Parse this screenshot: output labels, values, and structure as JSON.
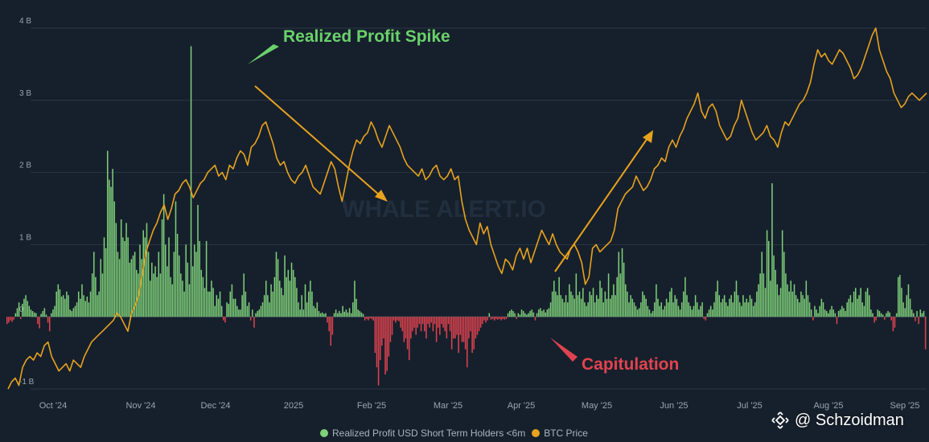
{
  "chart_data": {
    "type": "bar+line",
    "x_start": "2024-09-18",
    "x_end": "2025-09-17",
    "x_ticks": [
      "Oct '24",
      "Nov '24",
      "Dec '24",
      "2025",
      "Feb '25",
      "Mar '25",
      "Apr '25",
      "May '25",
      "Jun '25",
      "Jul '25",
      "Aug '25",
      "Sep '25"
    ],
    "y_ticks": [
      "4 B",
      "3 B",
      "2 B",
      "1 B",
      "0",
      "-1 B"
    ],
    "ylim": [
      -1000000000,
      4000000000
    ],
    "series": [
      {
        "name": "Realized Profit USD Short Term Holders <6m",
        "type": "bar",
        "color_positive": "#7fd17a",
        "color_negative": "#e0434f",
        "values": [
          -0.1,
          -0.08,
          -0.05,
          -0.07,
          -0.04,
          0.05,
          0.12,
          0.2,
          -0.03,
          0.18,
          0.25,
          0.3,
          0.22,
          0.15,
          0.1,
          0.08,
          0.06,
          0.05,
          -0.1,
          -0.16,
          0.04,
          0.08,
          0.12,
          0.03,
          -0.08,
          -0.2,
          0.05,
          0.1,
          0.15,
          0.35,
          0.45,
          0.38,
          0.28,
          0.3,
          0.25,
          0.35,
          0.3,
          0.1,
          0.08,
          0.12,
          0.15,
          0.2,
          0.35,
          0.25,
          0.45,
          0.3,
          0.22,
          0.28,
          0.2,
          0.35,
          0.6,
          0.9,
          0.55,
          0.3,
          0.35,
          0.8,
          0.6,
          1.1,
          0.95,
          2.3,
          1.9,
          1.8,
          2.05,
          1.6,
          1.3,
          0.9,
          0.8,
          1.35,
          1.1,
          1.05,
          1.3,
          1.1,
          0.75,
          0.8,
          0.85,
          0.9,
          0.65,
          0.6,
          1.0,
          0.8,
          1.2,
          1.1,
          1.3,
          0.9,
          0.5,
          0.75,
          0.6,
          0.7,
          0.55,
          0.9,
          0.6,
          1.35,
          1.7,
          1.0,
          0.7,
          1.1,
          0.55,
          0.45,
          0.9,
          1.6,
          1.15,
          0.85,
          0.6,
          0.5,
          0.35,
          1.0,
          0.75,
          0.45,
          3.75,
          0.7,
          1.0,
          0.9,
          1.55,
          1.05,
          0.65,
          0.55,
          0.4,
          1.05,
          0.35,
          0.35,
          0.5,
          0.4,
          0.15,
          0.3,
          0.25,
          0.35,
          0.15,
          -0.05,
          -0.08,
          0.2,
          0.18,
          0.35,
          0.45,
          0.25,
          0.25,
          0.15,
          0.1,
          0.1,
          0.3,
          0.6,
          0.35,
          0.15,
          0.2,
          -0.05,
          0.1,
          -0.15,
          0.05,
          0.08,
          0.1,
          0.15,
          0.2,
          0.3,
          0.5,
          0.3,
          0.2,
          0.45,
          0.35,
          0.55,
          0.9,
          0.8,
          0.5,
          0.4,
          0.3,
          0.85,
          0.55,
          0.65,
          0.5,
          0.75,
          0.65,
          0.55,
          0.4,
          0.2,
          0.1,
          0.3,
          0.1,
          0.45,
          0.2,
          0.35,
          0.5,
          0.35,
          0.15,
          0.12,
          0.2,
          0.08,
          0.05,
          0.06,
          0.04,
          0.05,
          -0.08,
          -0.2,
          -0.4,
          -0.25,
          0.05,
          0.1,
          0.05,
          0.08,
          0.05,
          0.15,
          0.07,
          0.1,
          0.06,
          0.12,
          0.05,
          0.2,
          0.5,
          0.25,
          0.1,
          0.08,
          0.06,
          0.04,
          -0.05,
          -0.03,
          -0.05,
          -0.02,
          -0.03,
          -0.05,
          -0.5,
          -0.7,
          -0.95,
          -0.6,
          -0.4,
          -0.3,
          -0.8,
          -0.75,
          -0.55,
          -0.35,
          -0.25,
          -0.05,
          -0.08,
          -0.05,
          -0.06,
          -0.15,
          -0.2,
          -0.35,
          -0.3,
          -0.45,
          -0.6,
          -0.3,
          -0.2,
          -0.15,
          -0.25,
          -0.15,
          -0.1,
          -0.2,
          -0.1,
          -0.2,
          -0.3,
          -0.1,
          -0.15,
          -0.08,
          -0.2,
          -0.1,
          -0.35,
          -0.15,
          -0.25,
          -0.1,
          -0.15,
          -0.2,
          -0.3,
          -0.1,
          -0.2,
          -0.45,
          -0.3,
          -0.3,
          -0.25,
          -0.5,
          -0.25,
          -0.35,
          -0.35,
          -0.45,
          -0.7,
          -0.3,
          -0.2,
          -0.5,
          -0.45,
          -0.3,
          -0.25,
          -0.2,
          -0.15,
          -0.1,
          -0.05,
          -0.08,
          -0.05,
          0.05,
          -0.04,
          -0.03,
          -0.05,
          -0.03,
          -0.04,
          -0.03,
          -0.05,
          -0.03,
          -0.04,
          -0.03,
          0.05,
          0.08,
          0.1,
          0.08,
          0.05,
          -0.03,
          0.05,
          0.03,
          0.1,
          0.08,
          0.05,
          0.03,
          0.05,
          0.08,
          0.1,
          0.06,
          -0.05,
          0.05,
          0.1,
          0.12,
          0.08,
          0.1,
          0.06,
          0.1,
          0.12,
          0.2,
          0.35,
          0.5,
          0.35,
          0.3,
          0.55,
          0.3,
          0.25,
          0.2,
          0.3,
          0.2,
          0.45,
          0.35,
          0.3,
          0.25,
          0.6,
          0.3,
          0.35,
          0.25,
          0.4,
          0.2,
          0.15,
          0.2,
          0.35,
          0.3,
          0.4,
          0.2,
          0.3,
          0.25,
          0.5,
          0.4,
          0.2,
          0.35,
          0.25,
          0.6,
          0.25,
          0.3,
          0.45,
          0.3,
          0.55,
          0.9,
          0.6,
          0.95,
          0.75,
          0.45,
          0.35,
          0.2,
          0.3,
          0.25,
          0.2,
          0.15,
          0.1,
          0.12,
          0.2,
          0.35,
          0.3,
          0.25,
          0.15,
          0.1,
          0.05,
          0.08,
          0.2,
          0.45,
          0.25,
          0.15,
          0.2,
          0.1,
          0.15,
          0.25,
          0.2,
          0.35,
          0.4,
          0.2,
          0.3,
          0.25,
          0.15,
          0.1,
          0.2,
          0.35,
          0.55,
          0.3,
          0.2,
          0.15,
          0.1,
          0.15,
          0.3,
          0.2,
          0.1,
          0.15,
          0.2,
          -0.03,
          -0.05,
          0.05,
          0.1,
          0.15,
          0.1,
          0.2,
          0.35,
          0.5,
          0.3,
          0.2,
          0.25,
          0.3,
          0.2,
          0.15,
          0.25,
          0.3,
          0.2,
          0.35,
          0.5,
          0.3,
          0.2,
          0.15,
          0.3,
          0.2,
          0.25,
          0.2,
          0.3,
          0.25,
          0.15,
          0.2,
          0.35,
          0.45,
          0.6,
          0.9,
          0.6,
          0.4,
          1.2,
          1.05,
          0.5,
          1.85,
          0.85,
          0.65,
          0.45,
          0.3,
          0.4,
          1.2,
          0.9,
          0.6,
          0.45,
          0.35,
          0.5,
          0.35,
          0.45,
          0.3,
          0.25,
          0.2,
          0.35,
          0.3,
          0.25,
          0.5,
          0.3,
          0.2,
          0.1,
          -0.05,
          0.15,
          0.1,
          0.05,
          0.15,
          0.25,
          0.2,
          0.1,
          0.08,
          0.05,
          0.1,
          0.15,
          0.1,
          0.05,
          -0.1,
          0.08,
          0.1,
          0.15,
          0.12,
          0.08,
          0.2,
          0.25,
          0.3,
          0.2,
          0.35,
          0.4,
          0.25,
          0.3,
          0.4,
          0.2,
          0.15,
          0.35,
          0.4,
          0.3,
          0.1,
          0.05,
          -0.08,
          -0.05,
          0.1,
          0.08,
          0.05,
          0.03,
          -0.04,
          0.05,
          0.08,
          0.06,
          -0.05,
          -0.2,
          -0.15,
          0.05,
          0.55,
          0.58,
          0.4,
          0.2,
          0.12,
          0.3,
          0.45,
          0.25,
          0.1,
          0.05,
          -0.06,
          0.08,
          -0.1,
          0.1,
          0.05,
          0.08,
          -0.45
        ]
      },
      {
        "name": "BTC Price",
        "type": "line",
        "color": "#e8a21e",
        "values": [
          -1.0,
          -0.9,
          -0.85,
          -0.95,
          -0.7,
          -0.6,
          -0.55,
          -0.6,
          -0.5,
          -0.55,
          -0.4,
          -0.35,
          -0.55,
          -0.65,
          -0.75,
          -0.7,
          -0.65,
          -0.75,
          -0.6,
          -0.65,
          -0.7,
          -0.55,
          -0.45,
          -0.35,
          -0.3,
          -0.25,
          -0.2,
          -0.15,
          -0.1,
          -0.05,
          0.05,
          0.0,
          -0.1,
          -0.2,
          0.05,
          0.15,
          0.3,
          0.6,
          0.9,
          1.05,
          1.2,
          1.3,
          1.45,
          1.55,
          1.35,
          1.5,
          1.7,
          1.75,
          1.85,
          1.9,
          1.8,
          1.65,
          1.75,
          1.85,
          1.9,
          2.0,
          2.05,
          2.1,
          1.95,
          2.0,
          1.9,
          2.1,
          2.05,
          2.2,
          2.3,
          2.25,
          2.1,
          2.35,
          2.4,
          2.5,
          2.65,
          2.7,
          2.55,
          2.4,
          2.2,
          2.1,
          2.15,
          2.0,
          1.9,
          1.85,
          1.95,
          2.0,
          2.1,
          1.95,
          1.8,
          1.75,
          1.7,
          1.85,
          2.0,
          2.15,
          2.05,
          1.8,
          1.6,
          1.85,
          2.1,
          2.3,
          2.45,
          2.4,
          2.5,
          2.55,
          2.7,
          2.6,
          2.45,
          2.35,
          2.5,
          2.65,
          2.55,
          2.45,
          2.35,
          2.2,
          2.1,
          2.05,
          2.0,
          1.95,
          2.05,
          1.9,
          1.95,
          2.05,
          2.1,
          1.95,
          1.9,
          1.95,
          2.05,
          1.9,
          1.95,
          1.6,
          1.35,
          1.2,
          1.1,
          1.0,
          1.3,
          1.15,
          1.25,
          1.0,
          0.85,
          0.7,
          0.6,
          0.8,
          0.75,
          0.65,
          0.85,
          0.95,
          0.8,
          0.95,
          0.75,
          0.9,
          1.05,
          1.2,
          1.1,
          1.0,
          1.15,
          1.0,
          0.9,
          0.85,
          0.8,
          0.95,
          1.0,
          0.9,
          0.75,
          0.45,
          0.55,
          0.95,
          1.0,
          0.9,
          0.95,
          1.0,
          1.05,
          1.2,
          1.5,
          1.6,
          1.7,
          1.75,
          1.8,
          1.95,
          1.85,
          1.75,
          1.8,
          1.9,
          2.05,
          2.1,
          2.2,
          2.15,
          2.35,
          2.45,
          2.35,
          2.5,
          2.6,
          2.75,
          2.85,
          2.95,
          3.1,
          2.85,
          2.75,
          2.9,
          2.95,
          2.85,
          2.65,
          2.55,
          2.45,
          2.5,
          2.65,
          2.75,
          3.0,
          2.85,
          2.7,
          2.55,
          2.45,
          2.5,
          2.55,
          2.65,
          2.5,
          2.45,
          2.35,
          2.55,
          2.7,
          2.65,
          2.75,
          2.85,
          2.95,
          3.0,
          3.1,
          3.25,
          3.5,
          3.7,
          3.6,
          3.65,
          3.55,
          3.5,
          3.6,
          3.7,
          3.65,
          3.55,
          3.45,
          3.3,
          3.35,
          3.45,
          3.6,
          3.75,
          3.9,
          4.0,
          3.7,
          3.55,
          3.4,
          3.3,
          3.1,
          3.0,
          2.9,
          2.95,
          3.05,
          3.1,
          3.05,
          3.0,
          3.05,
          3.1
        ]
      }
    ]
  },
  "annotations": {
    "spike_label": "Realized Profit Spike",
    "capitulation_label": "Capitulation"
  },
  "watermark": "WHALE ALERT.IO",
  "credit": {
    "icon": "binance-diamond-icon",
    "text": "@ Schzoidman"
  },
  "colors": {
    "background": "#16202c",
    "grid": "#2a3645",
    "positive_bar": "#7fd17a",
    "negative_bar": "#e0434f",
    "btc_line": "#e8a21e",
    "annotation_green": "#6bd16b",
    "annotation_red": "#e0434f",
    "arrow": "#e8a21e"
  }
}
